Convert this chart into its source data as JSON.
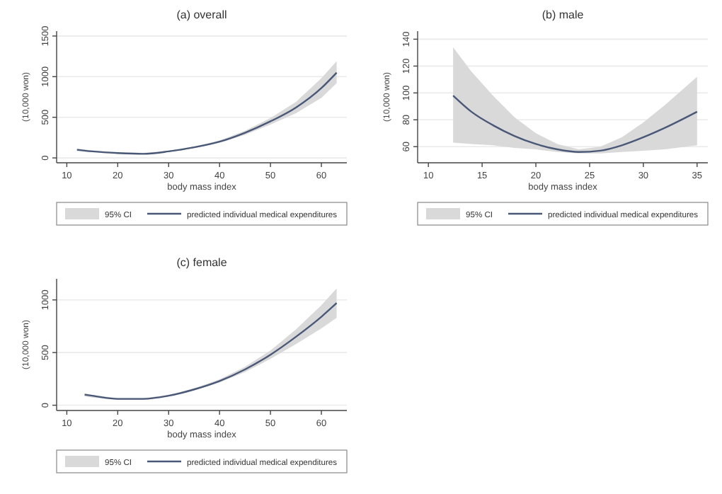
{
  "chart_data": [
    {
      "type": "line",
      "title": "(a) overall",
      "xlabel": "body mass index",
      "ylabel": "(10,000 won)",
      "xlim": [
        8,
        65
      ],
      "xticks": [
        10,
        20,
        30,
        40,
        50,
        60
      ],
      "ylim": [
        -60,
        1560
      ],
      "yticks": [
        0,
        500,
        1000,
        1500
      ],
      "grid": "y",
      "legend": "bottom",
      "annotations": [
        "95% CI"
      ],
      "x": [
        12,
        15,
        20,
        25,
        30,
        35,
        40,
        45,
        50,
        55,
        60,
        63
      ],
      "series": [
        {
          "name": "predicted individual medical expenditures",
          "color": "#4a5878",
          "values": [
            100,
            80,
            60,
            50,
            80,
            130,
            200,
            310,
            450,
            620,
            860,
            1050
          ],
          "lower": [
            85,
            70,
            52,
            48,
            72,
            120,
            185,
            285,
            410,
            550,
            740,
            920
          ],
          "upper": [
            115,
            92,
            68,
            62,
            88,
            140,
            215,
            335,
            490,
            690,
            980,
            1190
          ]
        }
      ]
    },
    {
      "type": "line",
      "title": "(b) male",
      "xlabel": "body mass index",
      "ylabel": "(10,000 won)",
      "xlim": [
        9,
        36
      ],
      "xticks": [
        10,
        15,
        20,
        25,
        30,
        35
      ],
      "ylim": [
        48,
        146
      ],
      "yticks": [
        60,
        80,
        100,
        120,
        140
      ],
      "grid": "y",
      "legend": "bottom",
      "annotations": [
        "95% CI"
      ],
      "x": [
        12.3,
        14,
        16,
        18,
        20,
        22,
        24,
        26,
        28,
        30,
        32,
        35
      ],
      "series": [
        {
          "name": "predicted individual medical expenditures",
          "color": "#4a5878",
          "values": [
            98,
            86,
            76,
            68,
            62,
            58,
            56,
            57,
            61,
            67,
            74,
            86
          ],
          "lower": [
            63,
            62,
            61,
            59,
            58,
            56,
            55,
            55,
            56,
            57,
            58,
            61
          ],
          "upper": [
            134,
            116,
            98,
            82,
            70,
            62,
            58,
            60,
            67,
            78,
            91,
            112
          ]
        }
      ]
    },
    {
      "type": "line",
      "title": "(c) female",
      "xlabel": "body mass index",
      "ylabel": "(10,000 won)",
      "xlim": [
        8,
        65
      ],
      "xticks": [
        10,
        20,
        30,
        40,
        50,
        60
      ],
      "ylim": [
        -50,
        1200
      ],
      "yticks": [
        0,
        500,
        1000
      ],
      "grid": "y",
      "legend": "bottom",
      "annotations": [
        "95% CI"
      ],
      "x": [
        13.5,
        15,
        20,
        25,
        30,
        35,
        40,
        45,
        50,
        55,
        60,
        63
      ],
      "series": [
        {
          "name": "predicted individual medical expenditures",
          "color": "#4a5878",
          "values": [
            100,
            90,
            60,
            60,
            90,
            150,
            230,
            340,
            480,
            650,
            840,
            970
          ],
          "lower": [
            85,
            72,
            52,
            52,
            82,
            140,
            215,
            315,
            440,
            580,
            730,
            830
          ],
          "upper": [
            115,
            98,
            68,
            68,
            98,
            160,
            245,
            365,
            520,
            720,
            950,
            1110
          ]
        }
      ]
    }
  ]
}
